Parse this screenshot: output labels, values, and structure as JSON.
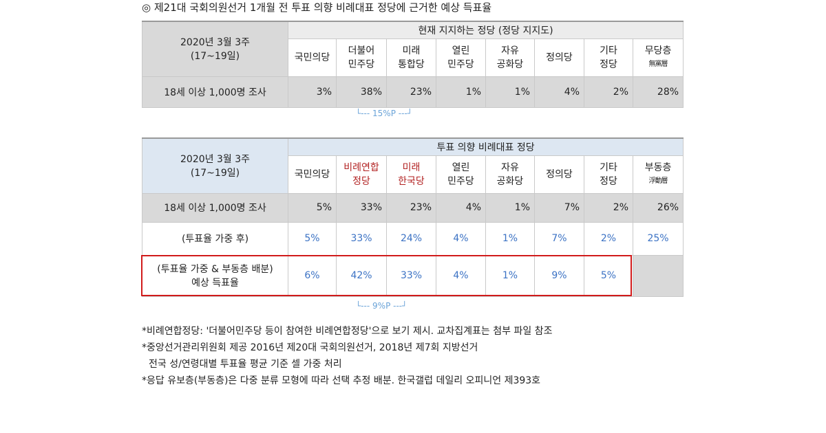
{
  "title": "◎  제21대 국회의원선거 1개월 전 투표 의향 비례대표 정당에 근거한 예상 득표율",
  "table1": {
    "date": "2020년 3월 3주",
    "range": "(17~19일)",
    "header": "현재 지지하는 정당 (정당 지지도)",
    "parties": [
      {
        "line1": "국민의당",
        "line2": ""
      },
      {
        "line1": "더불어",
        "line2": "민주당"
      },
      {
        "line1": "미래",
        "line2": "통합당"
      },
      {
        "line1": "열린",
        "line2": "민주당"
      },
      {
        "line1": "자유",
        "line2": "공화당"
      },
      {
        "line1": "정의당",
        "line2": ""
      },
      {
        "line1": "기타",
        "line2": "정당"
      },
      {
        "line1": "무당층",
        "line2": "無黨層"
      }
    ],
    "row_label": "18세 이상 1,000명 조사",
    "values": [
      "3%",
      "38%",
      "23%",
      "1%",
      "1%",
      "4%",
      "2%",
      "28%"
    ]
  },
  "gap1": "└--- 15%P ---┘",
  "table2": {
    "date": "2020년 3월 3주",
    "range": "(17~19일)",
    "header": "투표 의향 비례대표 정당",
    "parties": [
      {
        "line1": "국민의당",
        "line2": ""
      },
      {
        "line1": "비례연합",
        "line2": "정당"
      },
      {
        "line1": "미래",
        "line2": "한국당"
      },
      {
        "line1": "열린",
        "line2": "민주당"
      },
      {
        "line1": "자유",
        "line2": "공화당"
      },
      {
        "line1": "정의당",
        "line2": ""
      },
      {
        "line1": "기타",
        "line2": "정당"
      },
      {
        "line1": "부동층",
        "line2": "浮動層"
      }
    ],
    "row1_label": "18세 이상 1,000명 조사",
    "row1_values": [
      "5%",
      "33%",
      "23%",
      "4%",
      "1%",
      "7%",
      "2%",
      "26%"
    ],
    "row2_label": "(투표율 가중 후)",
    "row2_values": [
      "5%",
      "33%",
      "24%",
      "4%",
      "1%",
      "7%",
      "2%",
      "25%"
    ],
    "row3_label1": "(투표율 가중 & 부동층 배분)",
    "row3_label2": "예상 득표율",
    "row3_values": [
      "6%",
      "42%",
      "33%",
      "4%",
      "1%",
      "9%",
      "5%",
      ""
    ]
  },
  "gap2": "└--- 9%P ---┘",
  "notes": [
    "*비례연합정당: '더불어민주당 등이 참여한 비례연합정당'으로 보기 제시. 교차집계표는 첨부 파일 참조",
    "*중앙선거관리위원회 제공 2016년 제20대 국회의원선거, 2018년 제7회 지방선거",
    "  전국 성/연령대별 투표율 평균 기준 셀 가중 처리",
    "*응답 유보층(부동층)은 다중 분류 모형에 따라 선택 추정 배분. 한국갤럽 데일리 오피니언 제393호"
  ],
  "colors": {
    "header_gray": "#d9d9d9",
    "header_blue": "#dde7f2",
    "blue_text": "#3b72c4",
    "red_text": "#b22222",
    "red_box": "#d11a1a"
  }
}
